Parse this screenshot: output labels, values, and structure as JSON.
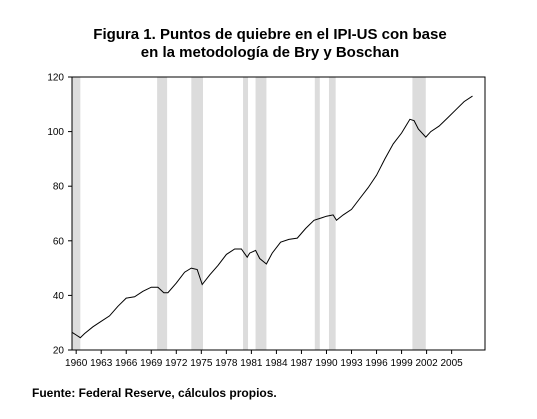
{
  "title_line1": "Figura 1. Puntos de quiebre en el IPI-US con base",
  "title_line2": "en la metodología de Bry y Boschan",
  "source": "Fuente: Federal Reserve, cálculos propios.",
  "chart_data": {
    "type": "line",
    "title": "Figura 1. Puntos de quiebre en el IPI-US con base en la metodología de Bry y Boschan",
    "xlabel": "",
    "ylabel": "",
    "xlim": [
      1959.5,
      2009.0
    ],
    "ylim": [
      20,
      120
    ],
    "yticks": [
      20,
      40,
      60,
      80,
      100,
      120
    ],
    "xticks": [
      1960,
      1963,
      1966,
      1969,
      1972,
      1975,
      1978,
      1981,
      1984,
      1987,
      1990,
      1993,
      1996,
      1999,
      2002,
      2005
    ],
    "xtick_labels": [
      "1960",
      "1963",
      "1966",
      "1969",
      "1972",
      "1975",
      "1978",
      "1981",
      "1984",
      "1987",
      "1990",
      "1993",
      "1996",
      "1999",
      "2002",
      "2005"
    ],
    "grid": false,
    "line_color": "#000000",
    "band_color": "#dcdcdc",
    "shaded_periods": [
      [
        1959.5,
        1960.5
      ],
      [
        1969.7,
        1970.9
      ],
      [
        1973.8,
        1975.2
      ],
      [
        1980.0,
        1980.6
      ],
      [
        1981.5,
        1982.8
      ],
      [
        1988.6,
        1989.2
      ],
      [
        1990.3,
        1991.1
      ],
      [
        2000.3,
        2001.9
      ]
    ],
    "series": [
      {
        "x": [
          1959.5,
          1960.0,
          1960.5,
          1961.0,
          1962.0,
          1963.0,
          1964.0,
          1965.0,
          1966.0,
          1967.0,
          1968.0,
          1969.0,
          1969.8,
          1970.5,
          1971.0,
          1972.0,
          1973.0,
          1973.8,
          1974.5,
          1975.1,
          1976.0,
          1977.0,
          1978.0,
          1979.0,
          1979.8,
          1980.5,
          1980.8,
          1981.5,
          1982.0,
          1982.8,
          1983.5,
          1984.5,
          1985.5,
          1986.5,
          1987.5,
          1988.5,
          1989.5,
          1990.0,
          1990.8,
          1991.2,
          1992.0,
          1993.0,
          1994.0,
          1995.0,
          1996.0,
          1997.0,
          1998.0,
          1999.0,
          2000.0,
          2000.5,
          2001.0,
          2001.9,
          2002.5,
          2003.5,
          2004.5,
          2005.5,
          2006.5,
          2007.5
        ],
        "y": [
          26.5,
          25.5,
          24.5,
          26.0,
          28.5,
          30.5,
          32.5,
          36.0,
          39.0,
          39.5,
          41.5,
          43.0,
          43.0,
          41.0,
          41.0,
          44.5,
          48.5,
          50.0,
          49.5,
          44.0,
          47.5,
          51.0,
          55.0,
          57.0,
          57.0,
          54.0,
          55.5,
          56.5,
          53.5,
          51.5,
          55.5,
          59.5,
          60.5,
          61.0,
          64.5,
          67.5,
          68.5,
          69.0,
          69.5,
          67.5,
          69.5,
          71.5,
          75.5,
          79.5,
          84.0,
          90.0,
          95.5,
          99.5,
          104.5,
          104.0,
          101.0,
          98.0,
          100.0,
          102.0,
          105.0,
          108.0,
          111.0,
          113.0
        ]
      }
    ]
  }
}
